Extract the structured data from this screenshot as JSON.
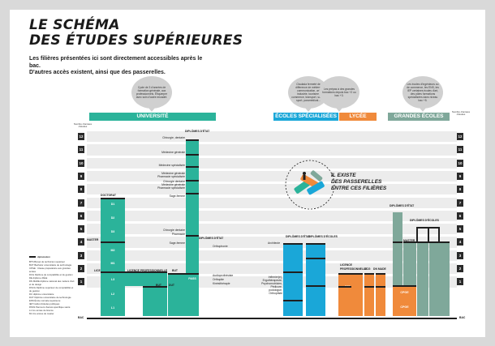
{
  "title_line1": "LE SCHÉMA",
  "title_line2": "DES ÉTUDES SUPÉRIEURES",
  "subtitle_line1": "Les filières présentées ici sont directement accessibles après le bac.",
  "subtitle_line2": "D'autres accès existent, ainsi que des passerelles.",
  "bubbles": {
    "universite": "Cycle de 3 d'années de formation générale, aux professionnels. Éfiquerper avec soin d'autre encadré.",
    "ecoles": "Cisulada fermeté de difference de métiers, communication, art industrie, tourisme, commerce, transport, social, sport, paramédical...",
    "lycee": "Les prépas à des grandes formations depuis bac +2 ou bac +3.",
    "grandes_ecoles": "Les écoles d'ingénieurs ou de commerce, les ENS, les IEP certaines écoles d'art, des pôles formations spécialisées dans niveau bac +5."
  },
  "banners": {
    "universite": "UNIVERSITÉ",
    "ecoles": "ÉCOLES SPÉCIALISÉES",
    "lycee": "LYCÉE",
    "grandes_ecoles": "GRANDES ÉCOLES"
  },
  "colors": {
    "teal": "#2bb39a",
    "blue": "#1aa7d8",
    "orange": "#f08a3b",
    "gray_green": "#7fa89a",
    "dark": "#1f1f1f"
  },
  "axis_title_left": "Nombre d'années d'études",
  "axis_title_right": "Nombre d'années d'études",
  "rows": [
    "1",
    "2",
    "3",
    "4",
    "5",
    "6",
    "7",
    "8",
    "9",
    "10",
    "11",
    "12"
  ],
  "bac_label": "BAC",
  "legend": {
    "heading": "diplomation",
    "lines": [
      "BTS Brevet de technicien supérieur",
      "BUT Bachelor universitaire de technologie",
      "CPGE : Classe préparatoire aux grandes écoles",
      "DCG Diplôme de comptabilité et de gestion",
      "DE diplôme d'État",
      "DN MADE diplôme national des métiers d'art et du design",
      "DSCG Diplôme supérieur de comptabilité et de gestion",
      "DU diplôme universitaire",
      "DUT Diplôme universitaire de technologie",
      "ENS École normale supérieure",
      "IEP Institut d'études politiques",
      "PASS Parcours d'accès spécifique santé",
      "L1 1re année de licence",
      "M1 1re année de master"
    ]
  },
  "univ_labels": {
    "doctorat": "DOCTORAT",
    "master": "MASTER",
    "licence": "LICENCE",
    "licence_pro": "LICENCE PROFESSIONNELLE",
    "but": "BUT",
    "dut": "DUT",
    "de_univ": "DIPLÔMES D'ÉTAT",
    "de_sante": "DIPLÔMES D'ÉTAT",
    "d1": "D1",
    "d2": "D2",
    "d3": "D3",
    "m1": "M1",
    "m2": "M2",
    "l1": "L1",
    "l2": "L2",
    "l3": "L3",
    "pass": "PASS"
  },
  "side_labels": [
    "Chirurgie, dentaire",
    "Médecine générale",
    "Médecine spécialisée",
    "Médecine générale",
    "Pharmacie spécialisée",
    "Chirurgie dentaire",
    "Médecine générale",
    "Pharmacie spécialisée",
    "Sage-femme",
    "Chirurgie dentaire",
    "Pharmacie",
    "Sage-femme",
    "Orthophonie",
    "Audioprothésiste",
    "Orthoptie",
    "Kinésithérapie"
  ],
  "ecoles_labels": {
    "de": "DIPLÔMES D'ÉTAT",
    "de_ecoles": "DIPLÔMES D'ÉCOLES",
    "architecte": "Architecte",
    "soins": "Infirmier(e), Ergothérapeute, Psychomotricien, Pédicure-podologue, Orthoptiste"
  },
  "lycee_labels": {
    "licence": "LICENCE",
    "bts": "BTS",
    "dcg": "DCG",
    "dn_made": "DN MADE",
    "professionnelle": "PROFESSIONNELLE"
  },
  "ge_labels": {
    "de": "DIPLÔMES D'ÉTAT",
    "de_ecoles": "DIPLÔMES D'ÉCOLES",
    "master": "MASTER",
    "cpge": "CPGE"
  },
  "passerelle_text": [
    "IL EXISTE",
    "DES PASSERELLES",
    "ENTRE CES FILIÈRES"
  ]
}
